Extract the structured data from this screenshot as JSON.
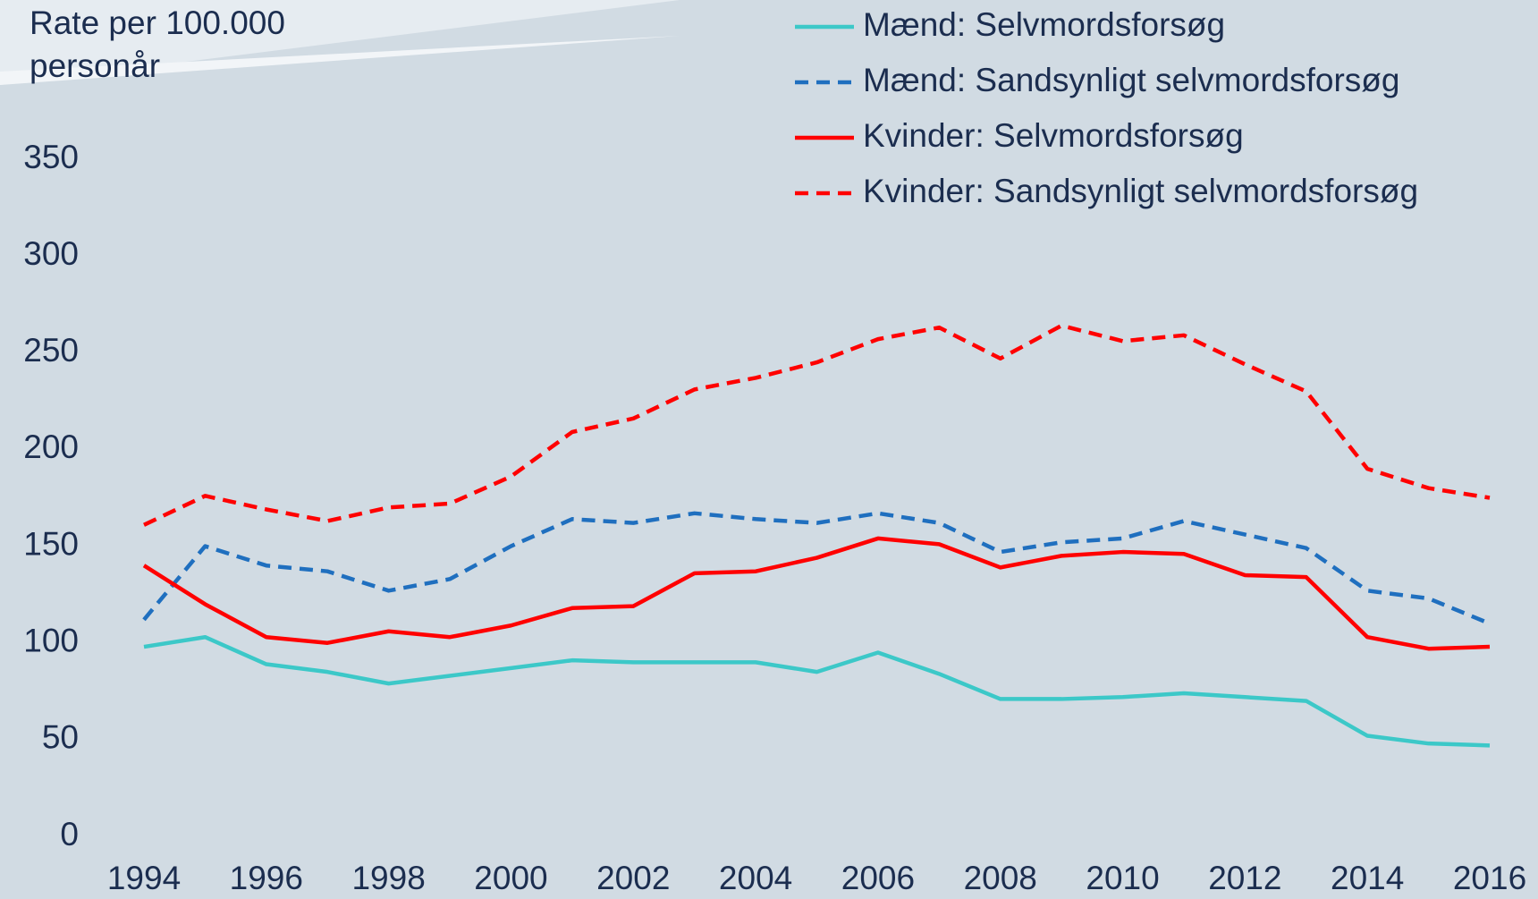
{
  "chart_data": {
    "type": "line",
    "y_label": [
      "Rate per 100.000",
      "personår"
    ],
    "x": [
      1994,
      1995,
      1996,
      1997,
      1998,
      1999,
      2000,
      2001,
      2002,
      2003,
      2004,
      2005,
      2006,
      2007,
      2008,
      2009,
      2010,
      2011,
      2012,
      2013,
      2014,
      2015,
      2016
    ],
    "xlim": [
      1994,
      2016
    ],
    "xticks": [
      1994,
      1996,
      1998,
      2000,
      2002,
      2004,
      2006,
      2008,
      2010,
      2012,
      2014,
      2016
    ],
    "ylim": [
      0,
      350
    ],
    "yticks": [
      0,
      50,
      100,
      150,
      200,
      250,
      300,
      350
    ],
    "legend": "top-right",
    "series": [
      {
        "name": "Mænd: Selvmordsforsøg",
        "color": "#3cc8c8",
        "dash": "solid",
        "values": [
          98,
          103,
          89,
          85,
          79,
          83,
          87,
          91,
          90,
          90,
          90,
          85,
          95,
          84,
          71,
          71,
          72,
          74,
          72,
          70,
          52,
          48,
          47
        ]
      },
      {
        "name": "Mænd: Sandsynligt selvmordsforsøg",
        "color": "#1f6fbf",
        "dash": "dashed",
        "values": [
          112,
          150,
          140,
          137,
          127,
          133,
          150,
          164,
          162,
          167,
          164,
          162,
          167,
          162,
          147,
          152,
          154,
          163,
          156,
          149,
          127,
          123,
          110
        ]
      },
      {
        "name": "Kvinder: Selvmordsforsøg",
        "color": "#ff0000",
        "dash": "solid",
        "values": [
          140,
          120,
          103,
          100,
          106,
          103,
          109,
          118,
          119,
          136,
          137,
          144,
          154,
          151,
          139,
          145,
          147,
          146,
          135,
          134,
          103,
          97,
          98
        ]
      },
      {
        "name": "Kvinder: Sandsynligt selvmordsforsøg",
        "color": "#ff0000",
        "dash": "dashed",
        "values": [
          161,
          176,
          169,
          163,
          170,
          172,
          186,
          209,
          216,
          231,
          237,
          245,
          257,
          263,
          247,
          264,
          256,
          259,
          244,
          230,
          190,
          180,
          175
        ]
      }
    ]
  }
}
